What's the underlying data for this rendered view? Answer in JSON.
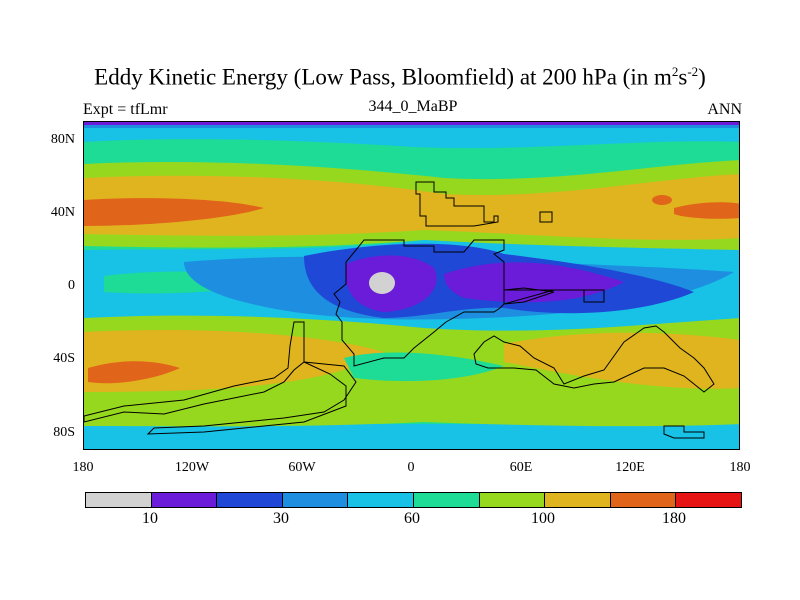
{
  "figure": {
    "title_main": "Eddy Kinetic Energy (Low Pass, Bloomfield) at 200 hPa (in m",
    "title_sup1": "2",
    "title_mid": "s",
    "title_sup2": "-2",
    "title_end": ")",
    "left_label": "Expt = tfLmr",
    "center_label": "344_0_MaBP",
    "right_label": "ANN"
  },
  "axes": {
    "y_ticks": [
      "80N",
      "40N",
      "0",
      "40S",
      "80S"
    ],
    "x_ticks": [
      "180",
      "120W",
      "60W",
      "0",
      "60E",
      "120E",
      "180"
    ]
  },
  "colorbar": {
    "colors": [
      "#d2d2d2",
      "#6a1cd8",
      "#1f48d6",
      "#1d8ee0",
      "#18c1e6",
      "#1edc96",
      "#96d81e",
      "#e0b41e",
      "#e0641a",
      "#e61414"
    ],
    "labels": [
      "10",
      "30",
      "60",
      "100",
      "180"
    ]
  },
  "chart_data": {
    "type": "heatmap",
    "title": "Eddy Kinetic Energy (Low Pass, Bloomfield) at 200 hPa (in m2s-2)",
    "subtitle": "344_0_MaBP",
    "xlabel": "",
    "ylabel": "",
    "xlim": [
      -180,
      180
    ],
    "ylim": [
      -90,
      90
    ],
    "contour_levels": [
      5,
      10,
      20,
      30,
      45,
      60,
      80,
      100,
      140,
      180
    ],
    "legend": "bottom colorbar"
  }
}
